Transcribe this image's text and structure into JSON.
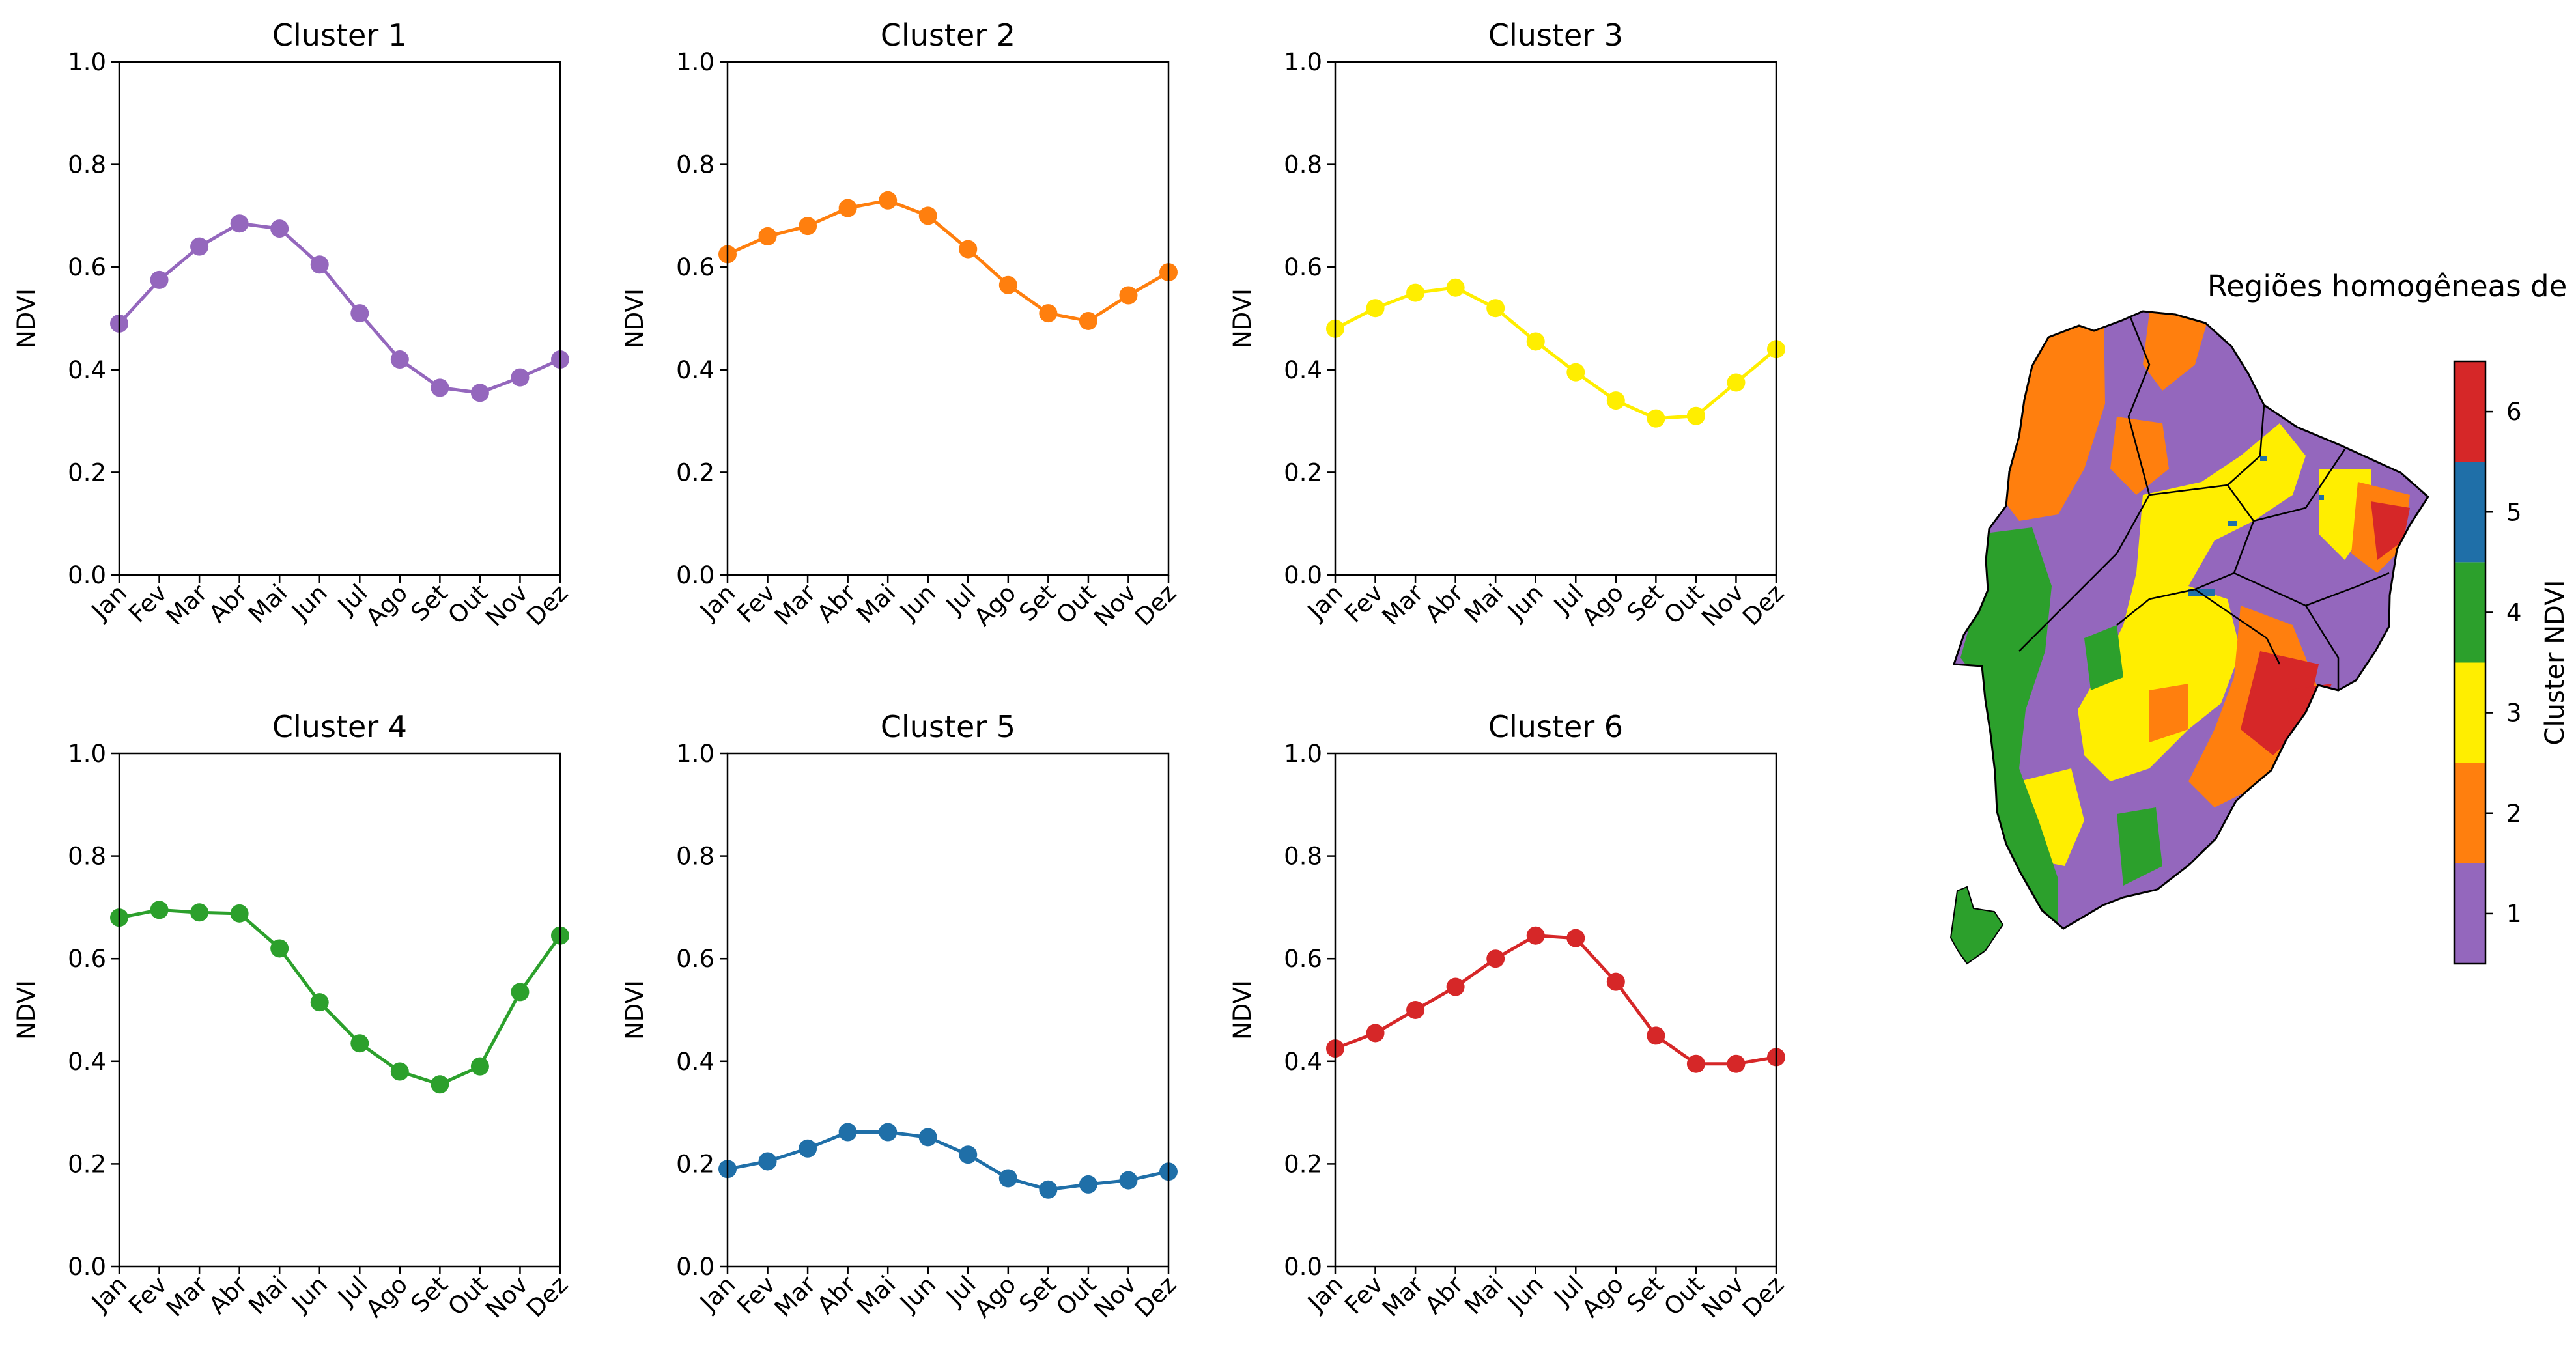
{
  "chart_data": [
    {
      "type": "line",
      "title": "Cluster 1",
      "xlabel": "",
      "ylabel": "NDVI",
      "ylim": [
        0,
        1
      ],
      "yticks": [
        "0.0",
        "0.2",
        "0.4",
        "0.6",
        "0.8",
        "1.0"
      ],
      "categories": [
        "Jan",
        "Fev",
        "Mar",
        "Abr",
        "Mai",
        "Jun",
        "Jul",
        "Ago",
        "Set",
        "Out",
        "Nov",
        "Dez"
      ],
      "color": "#9467bd",
      "values": [
        0.49,
        0.575,
        0.64,
        0.685,
        0.675,
        0.605,
        0.51,
        0.42,
        0.365,
        0.355,
        0.385,
        0.42
      ]
    },
    {
      "type": "line",
      "title": "Cluster 2",
      "xlabel": "",
      "ylabel": "NDVI",
      "ylim": [
        0,
        1
      ],
      "yticks": [
        "0.0",
        "0.2",
        "0.4",
        "0.6",
        "0.8",
        "1.0"
      ],
      "categories": [
        "Jan",
        "Fev",
        "Mar",
        "Abr",
        "Mai",
        "Jun",
        "Jul",
        "Ago",
        "Set",
        "Out",
        "Nov",
        "Dez"
      ],
      "color": "#ff7f0e",
      "values": [
        0.625,
        0.66,
        0.68,
        0.715,
        0.73,
        0.7,
        0.635,
        0.565,
        0.51,
        0.495,
        0.545,
        0.59
      ]
    },
    {
      "type": "line",
      "title": "Cluster 3",
      "xlabel": "",
      "ylabel": "NDVI",
      "ylim": [
        0,
        1
      ],
      "yticks": [
        "0.0",
        "0.2",
        "0.4",
        "0.6",
        "0.8",
        "1.0"
      ],
      "categories": [
        "Jan",
        "Fev",
        "Mar",
        "Abr",
        "Mai",
        "Jun",
        "Jul",
        "Ago",
        "Set",
        "Out",
        "Nov",
        "Dez"
      ],
      "color": "#ffee00",
      "values": [
        0.48,
        0.52,
        0.55,
        0.56,
        0.52,
        0.455,
        0.395,
        0.34,
        0.305,
        0.31,
        0.375,
        0.44
      ]
    },
    {
      "type": "line",
      "title": "Cluster 4",
      "xlabel": "",
      "ylabel": "NDVI",
      "ylim": [
        0,
        1
      ],
      "yticks": [
        "0.0",
        "0.2",
        "0.4",
        "0.6",
        "0.8",
        "1.0"
      ],
      "categories": [
        "Jan",
        "Fev",
        "Mar",
        "Abr",
        "Mai",
        "Jun",
        "Jul",
        "Ago",
        "Set",
        "Out",
        "Nov",
        "Dez"
      ],
      "color": "#2ca02c",
      "values": [
        0.68,
        0.695,
        0.69,
        0.688,
        0.62,
        0.515,
        0.435,
        0.38,
        0.355,
        0.39,
        0.535,
        0.645
      ]
    },
    {
      "type": "line",
      "title": "Cluster 5",
      "xlabel": "",
      "ylabel": "NDVI",
      "ylim": [
        0,
        1
      ],
      "yticks": [
        "0.0",
        "0.2",
        "0.4",
        "0.6",
        "0.8",
        "1.0"
      ],
      "categories": [
        "Jan",
        "Fev",
        "Mar",
        "Abr",
        "Mai",
        "Jun",
        "Jul",
        "Ago",
        "Set",
        "Out",
        "Nov",
        "Dez"
      ],
      "color": "#1f6fa8",
      "values": [
        0.19,
        0.205,
        0.23,
        0.262,
        0.262,
        0.252,
        0.218,
        0.172,
        0.15,
        0.16,
        0.168,
        0.185
      ]
    },
    {
      "type": "line",
      "title": "Cluster 6",
      "xlabel": "",
      "ylabel": "NDVI",
      "ylim": [
        0,
        1
      ],
      "yticks": [
        "0.0",
        "0.2",
        "0.4",
        "0.6",
        "0.8",
        "1.0"
      ],
      "categories": [
        "Jan",
        "Fev",
        "Mar",
        "Abr",
        "Mai",
        "Jun",
        "Jul",
        "Ago",
        "Set",
        "Out",
        "Nov",
        "Dez"
      ],
      "color": "#d62728",
      "values": [
        0.425,
        0.455,
        0.5,
        0.545,
        0.6,
        0.645,
        0.64,
        0.555,
        0.45,
        0.395,
        0.395,
        0.408
      ]
    },
    {
      "type": "heatmap",
      "title": "Regiões homogêneas de NDVI",
      "colorbar_label": "Cluster NDVI",
      "colorbar_ticks": [
        "1",
        "2",
        "3",
        "4",
        "5",
        "6"
      ],
      "colorbar_colors": [
        "#9467bd",
        "#ff7f0e",
        "#ffee00",
        "#2ca02c",
        "#1f6fa8",
        "#d62728"
      ]
    }
  ]
}
